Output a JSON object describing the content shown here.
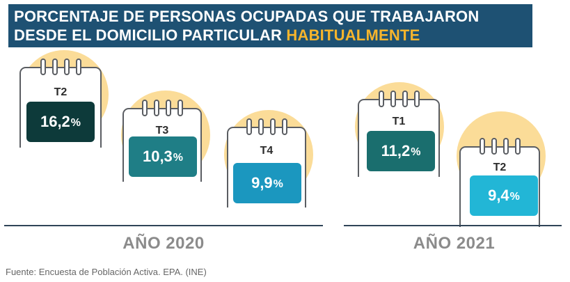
{
  "title": {
    "line1": "PORCENTAJE DE PERSONAS OCUPADAS QUE TRABAJARON",
    "line2_prefix": "DESDE EL DOMICILIO PARTICULAR",
    "line2_highlight": "HABITUALMENTE"
  },
  "colors": {
    "title_bg": "#1e5173",
    "highlight": "#f7b52c",
    "circle": "#fbdc98"
  },
  "chart_data": {
    "type": "bar",
    "title": "PORCENTAJE DE PERSONAS OCUPADAS QUE TRABAJARON DESDE EL DOMICILIO PARTICULAR HABITUALMENTE",
    "groups": [
      "AÑO 2020",
      "AÑO 2021"
    ],
    "items": [
      {
        "year": "AÑO 2020",
        "quarter": "T2",
        "value": 16.2,
        "label": "16,2",
        "color": "#0d3a3a"
      },
      {
        "year": "AÑO 2020",
        "quarter": "T3",
        "value": 10.3,
        "label": "10,3",
        "color": "#1f7e86"
      },
      {
        "year": "AÑO 2020",
        "quarter": "T4",
        "value": 9.9,
        "label": "9,9",
        "color": "#1b97bf"
      },
      {
        "year": "AÑO 2021",
        "quarter": "T1",
        "value": 11.2,
        "label": "11,2",
        "color": "#1a6e6e"
      },
      {
        "year": "AÑO 2021",
        "quarter": "T2",
        "value": 9.4,
        "label": "9,4",
        "color": "#22b6d6"
      }
    ],
    "unit": "%"
  },
  "source": "Fuente: Encuesta de Población Activa. EPA. (INE)"
}
